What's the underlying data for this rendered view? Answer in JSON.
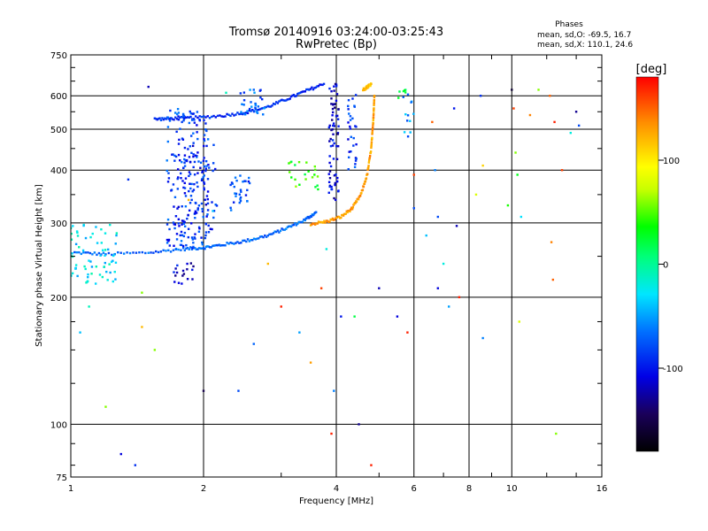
{
  "chart_data": {
    "type": "scatter",
    "title": "Tromsø 20140916 03:24:00-03:25:43",
    "subtitle": "RwPretec (Bp)",
    "xlabel": "Frequency [MHz]",
    "ylabel": "Stationary phase Virtual Height [km]",
    "x_scale": "log",
    "y_scale": "log",
    "xlim": [
      1,
      16
    ],
    "ylim": [
      75,
      750
    ],
    "x_ticks": [
      1,
      2,
      4,
      6,
      8,
      10,
      16
    ],
    "x_tick_labels": [
      "1",
      "2",
      "4",
      "6",
      "8",
      "10",
      "16"
    ],
    "y_ticks": [
      75,
      100,
      200,
      300,
      400,
      500,
      600,
      750
    ],
    "y_tick_labels": [
      "75",
      "100",
      "200",
      "300",
      "400",
      "500",
      "600",
      "750"
    ],
    "grid": true,
    "colorbar": {
      "label": "[deg]",
      "range": [
        -180,
        180
      ],
      "ticks": [
        100,
        0,
        -100
      ],
      "tick_labels": [
        "100",
        "0",
        "-100"
      ]
    },
    "stats": {
      "heading": "Phases",
      "line_o": "mean, sd,O: -69.5, 16.7",
      "line_x": "mean, sd,X: 110.1, 24.6"
    },
    "traces": [
      {
        "name": "o-trace-low",
        "phase": -70,
        "points": [
          [
            1.02,
            255
          ],
          [
            1.2,
            253
          ],
          [
            1.5,
            255
          ],
          [
            1.8,
            260
          ],
          [
            2.0,
            262
          ],
          [
            2.2,
            266
          ],
          [
            2.5,
            272
          ],
          [
            2.8,
            280
          ],
          [
            3.1,
            292
          ],
          [
            3.4,
            305
          ],
          [
            3.6,
            318
          ]
        ]
      },
      {
        "name": "o-trace-high",
        "phase": -90,
        "points": [
          [
            1.55,
            528
          ],
          [
            1.7,
            530
          ],
          [
            1.9,
            532
          ],
          [
            2.2,
            538
          ],
          [
            2.5,
            548
          ],
          [
            2.8,
            565
          ],
          [
            3.1,
            590
          ],
          [
            3.4,
            615
          ],
          [
            3.75,
            640
          ]
        ]
      },
      {
        "name": "x-trace-low",
        "phase": 130,
        "points": [
          [
            3.5,
            298
          ],
          [
            3.8,
            302
          ],
          [
            4.1,
            310
          ],
          [
            4.35,
            325
          ],
          [
            4.55,
            350
          ],
          [
            4.7,
            390
          ],
          [
            4.8,
            450
          ],
          [
            4.85,
            520
          ],
          [
            4.88,
            600
          ]
        ]
      },
      {
        "name": "x-trace-high",
        "phase": 120,
        "points": [
          [
            4.6,
            620
          ],
          [
            4.7,
            630
          ],
          [
            4.8,
            640
          ]
        ]
      }
    ],
    "clusters": [
      {
        "name": "f-spread-main",
        "phase": -85,
        "x_range": [
          1.65,
          2.05
        ],
        "y_range": [
          260,
          560
        ],
        "count": 190
      },
      {
        "name": "f-spread-side",
        "phase": -95,
        "x_range": [
          1.75,
          2.15
        ],
        "y_range": [
          280,
          460
        ],
        "count": 60
      },
      {
        "name": "low-freq-spread",
        "phase": -30,
        "x_range": [
          1.0,
          1.28
        ],
        "y_range": [
          215,
          300
        ],
        "count": 70
      },
      {
        "name": "bottom-cusp",
        "phase": -110,
        "x_range": [
          1.68,
          1.9
        ],
        "y_range": [
          215,
          245
        ],
        "count": 18
      },
      {
        "name": "mid-spread",
        "phase": -80,
        "x_range": [
          2.3,
          2.55
        ],
        "y_range": [
          320,
          390
        ],
        "count": 30
      },
      {
        "name": "upper-mid",
        "phase": -70,
        "x_range": [
          2.4,
          2.75
        ],
        "y_range": [
          540,
          620
        ],
        "count": 28
      },
      {
        "name": "near-4mhz",
        "phase": -110,
        "x_range": [
          3.85,
          4.05
        ],
        "y_range": [
          340,
          640
        ],
        "count": 70
      },
      {
        "name": "near-4-4mhz",
        "phase": -90,
        "x_range": [
          4.25,
          4.45
        ],
        "y_range": [
          400,
          620
        ],
        "count": 30
      },
      {
        "name": "green-patch",
        "phase": 40,
        "x_range": [
          3.1,
          3.65
        ],
        "y_range": [
          360,
          420
        ],
        "count": 22
      },
      {
        "name": "green-patch-2",
        "phase": 30,
        "x_range": [
          5.5,
          5.75
        ],
        "y_range": [
          590,
          620
        ],
        "count": 6
      },
      {
        "name": "upper-6mhz",
        "phase": -60,
        "x_range": [
          5.6,
          6.0
        ],
        "y_range": [
          470,
          620
        ],
        "count": 12
      }
    ],
    "scatter": [
      [
        1.35,
        380,
        -90
      ],
      [
        1.5,
        630,
        -120
      ],
      [
        1.85,
        340,
        120
      ],
      [
        2.1,
        320,
        -40
      ],
      [
        2.25,
        610,
        -10
      ],
      [
        2.6,
        620,
        -70
      ],
      [
        2.8,
        240,
        120
      ],
      [
        3.0,
        190,
        170
      ],
      [
        3.3,
        165,
        -50
      ],
      [
        3.5,
        140,
        130
      ],
      [
        3.7,
        210,
        160
      ],
      [
        3.9,
        95,
        170
      ],
      [
        3.95,
        120,
        -60
      ],
      [
        4.1,
        180,
        -100
      ],
      [
        4.4,
        180,
        20
      ],
      [
        4.5,
        100,
        -130
      ],
      [
        4.8,
        80,
        170
      ],
      [
        5.0,
        210,
        -120
      ],
      [
        5.5,
        180,
        -110
      ],
      [
        5.8,
        165,
        170
      ],
      [
        6.0,
        390,
        160
      ],
      [
        6.0,
        325,
        -80
      ],
      [
        6.4,
        280,
        -40
      ],
      [
        6.6,
        520,
        150
      ],
      [
        6.7,
        400,
        -60
      ],
      [
        6.8,
        310,
        -80
      ],
      [
        6.8,
        210,
        -110
      ],
      [
        7.0,
        240,
        -20
      ],
      [
        7.2,
        190,
        -50
      ],
      [
        7.4,
        560,
        -100
      ],
      [
        7.5,
        295,
        -120
      ],
      [
        7.6,
        200,
        170
      ],
      [
        8.3,
        350,
        80
      ],
      [
        8.5,
        600,
        -90
      ],
      [
        8.6,
        410,
        110
      ],
      [
        8.6,
        160,
        -60
      ],
      [
        9.8,
        330,
        40
      ],
      [
        10.0,
        620,
        -160
      ],
      [
        10.1,
        560,
        160
      ],
      [
        10.2,
        440,
        60
      ],
      [
        10.3,
        390,
        30
      ],
      [
        10.4,
        175,
        80
      ],
      [
        10.5,
        310,
        -30
      ],
      [
        11.0,
        540,
        140
      ],
      [
        11.5,
        620,
        60
      ],
      [
        12.2,
        600,
        150
      ],
      [
        12.3,
        270,
        140
      ],
      [
        12.5,
        520,
        170
      ],
      [
        12.4,
        220,
        150
      ],
      [
        12.6,
        95,
        60
      ],
      [
        13.0,
        400,
        160
      ],
      [
        13.6,
        490,
        -20
      ],
      [
        14.0,
        550,
        -130
      ],
      [
        14.2,
        510,
        -80
      ],
      [
        1.05,
        165,
        -40
      ],
      [
        1.1,
        190,
        -10
      ],
      [
        1.2,
        110,
        60
      ],
      [
        1.3,
        85,
        -110
      ],
      [
        1.4,
        80,
        -90
      ],
      [
        1.45,
        205,
        60
      ],
      [
        1.45,
        170,
        120
      ],
      [
        1.55,
        150,
        60
      ],
      [
        2.0,
        120,
        -150
      ],
      [
        2.4,
        120,
        -80
      ],
      [
        2.6,
        155,
        -70
      ],
      [
        3.8,
        260,
        -20
      ]
    ]
  }
}
